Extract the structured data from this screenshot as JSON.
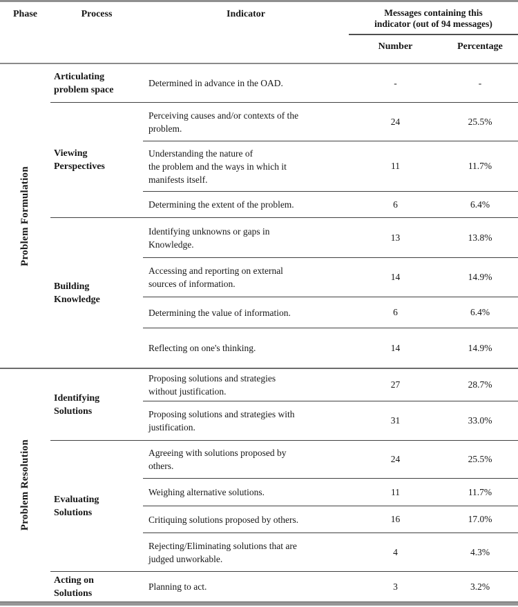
{
  "header": {
    "phase": "Phase",
    "process": "Process",
    "indicator": "Indicator",
    "messages_group": "Messages containing this\nindicator (out of 94 messages)",
    "number": "Number",
    "percentage": "Percentage"
  },
  "phases": [
    {
      "label": "Problem Formulation",
      "processes": [
        {
          "label": "Articulating\nproblem space",
          "indicators": [
            {
              "text": "Determined in advance in the OAD.",
              "number": "-",
              "percentage": "-"
            }
          ]
        },
        {
          "label": "Viewing\nPerspectives",
          "indicators": [
            {
              "text": "Perceiving causes and/or contexts of the\nproblem.",
              "number": "24",
              "percentage": "25.5%"
            },
            {
              "text": "Understanding the nature of\nthe problem and the ways in which it\nmanifests itself.",
              "number": "11",
              "percentage": "11.7%"
            },
            {
              "text": "Determining the extent of the problem.",
              "number": "6",
              "percentage": "6.4%"
            }
          ]
        },
        {
          "label": "Building\nKnowledge",
          "indicators": [
            {
              "text": "Identifying unknowns or gaps in\nKnowledge.",
              "number": "13",
              "percentage": "13.8%"
            },
            {
              "text": "Accessing and reporting on external\nsources of information.",
              "number": "14",
              "percentage": "14.9%"
            },
            {
              "text": "Determining the value of information.",
              "number": "6",
              "percentage": "6.4%"
            },
            {
              "text": "Reflecting on one's thinking.",
              "number": "14",
              "percentage": "14.9%"
            }
          ]
        }
      ]
    },
    {
      "label": "Problem Resolution",
      "processes": [
        {
          "label": "Identifying\nSolutions",
          "indicators": [
            {
              "text": "Proposing solutions and strategies\nwithout justification.",
              "number": "27",
              "percentage": "28.7%"
            },
            {
              "text": "Proposing solutions and strategies with\njustification.",
              "number": "31",
              "percentage": "33.0%"
            }
          ]
        },
        {
          "label": "Evaluating\nSolutions",
          "indicators": [
            {
              "text": "Agreeing with solutions proposed by\nothers.",
              "number": "24",
              "percentage": "25.5%"
            },
            {
              "text": "Weighing alternative solutions.",
              "number": "11",
              "percentage": "11.7%"
            },
            {
              "text": "Critiquing solutions proposed by others.",
              "number": "16",
              "percentage": "17.0%"
            },
            {
              "text": "Rejecting/Eliminating solutions that are\njudged unworkable.",
              "number": "4",
              "percentage": "4.3%"
            }
          ]
        },
        {
          "label": "Acting on\nSolutions",
          "indicators": [
            {
              "text": "Planning to act.",
              "number": "3",
              "percentage": "3.2%"
            }
          ]
        }
      ]
    }
  ]
}
